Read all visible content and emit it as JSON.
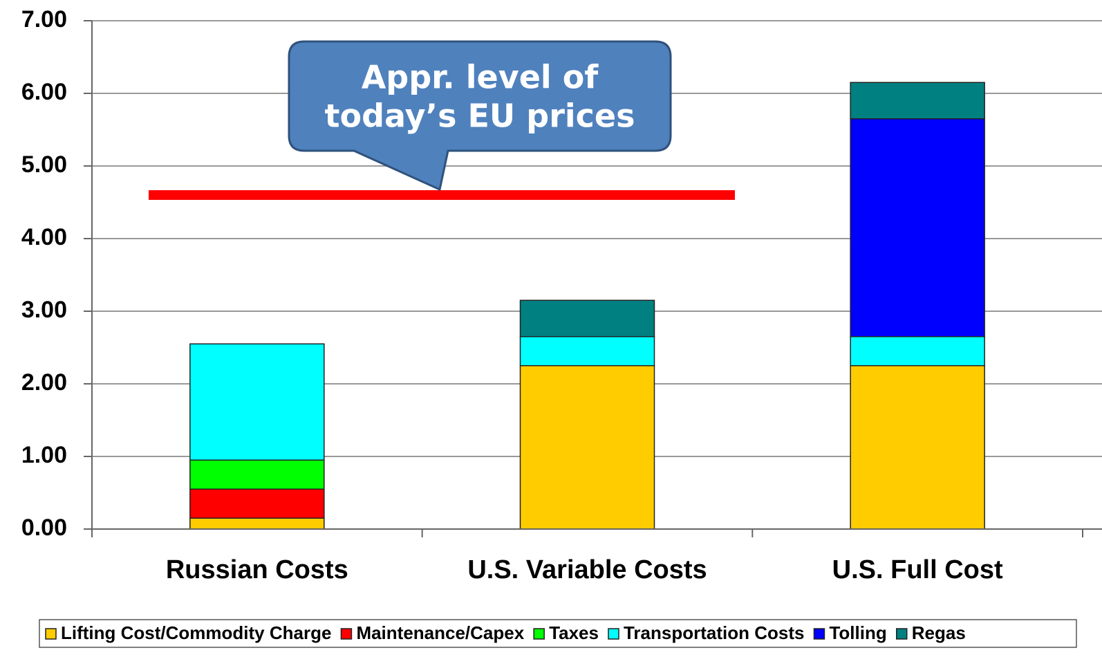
{
  "chart_data": {
    "type": "stacked_bar",
    "categories": [
      "Russian Costs",
      "U.S. Variable Costs",
      "U.S. Full Cost"
    ],
    "series": [
      {
        "name": "Lifting Cost/Commodity Charge",
        "color": "#ffcc00",
        "values": [
          0.15,
          2.25,
          2.25
        ]
      },
      {
        "name": "Maintenance/Capex",
        "color": "#ff0000",
        "values": [
          0.4,
          0,
          0
        ]
      },
      {
        "name": "Taxes",
        "color": "#00ff00",
        "values": [
          0.4,
          0,
          0
        ]
      },
      {
        "name": "Transportation Costs",
        "color": "#00ffff",
        "values": [
          1.6,
          0.4,
          0.4
        ]
      },
      {
        "name": "Tolling",
        "color": "#0000ff",
        "values": [
          0,
          0,
          3.0
        ]
      },
      {
        "name": "Regas",
        "color": "#008080",
        "values": [
          0,
          0.5,
          0.5
        ]
      }
    ],
    "ylim": [
      0,
      7
    ],
    "yticks": [
      {
        "value": 0,
        "label": "0.00"
      },
      {
        "value": 1,
        "label": "1.00"
      },
      {
        "value": 2,
        "label": "2.00"
      },
      {
        "value": 3,
        "label": "3.00"
      },
      {
        "value": 4,
        "label": "4.00"
      },
      {
        "value": 5,
        "label": "5.00"
      },
      {
        "value": 6,
        "label": "6.00"
      },
      {
        "value": 7,
        "label": "7.00"
      }
    ],
    "grid": true,
    "legend": "bottom",
    "reference_line": {
      "value": 4.6,
      "color": "#ff0000"
    },
    "annotation": [
      "Appr. level of",
      "today’s EU prices"
    ]
  }
}
